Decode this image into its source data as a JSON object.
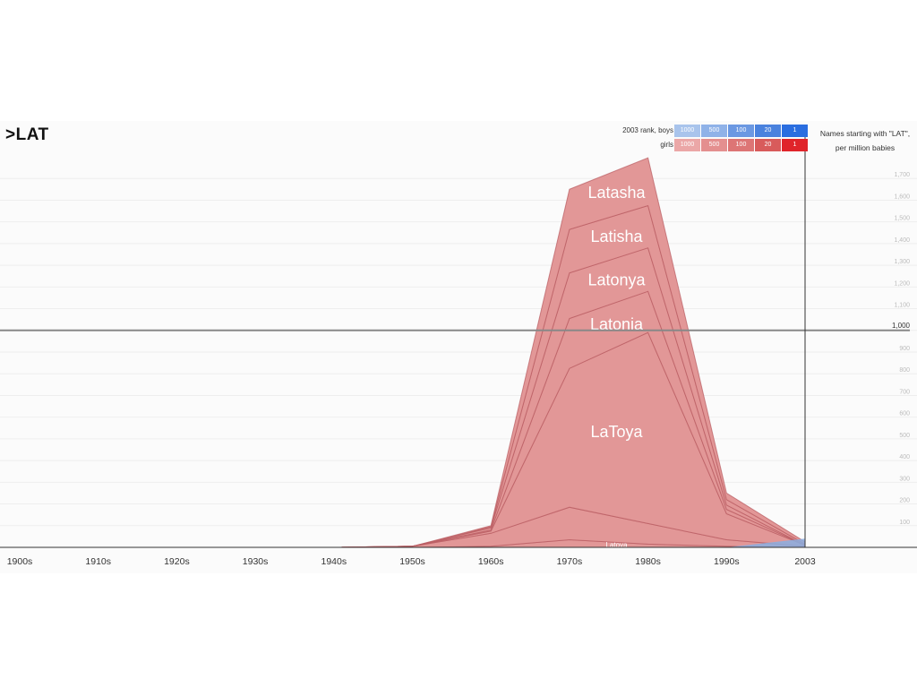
{
  "search_text": ">LAT",
  "legend": {
    "boys_label": "2003 rank, boys",
    "girls_label": "girls",
    "boys_cells": [
      "1000",
      "500",
      "100",
      "20",
      "1"
    ],
    "girls_cells": [
      "1000",
      "500",
      "100",
      "20",
      "1"
    ],
    "boys_colors": [
      "#a9c4ec",
      "#8fb2e8",
      "#6b98e2",
      "#4a82de",
      "#2a6ee0"
    ],
    "girls_colors": [
      "#eba7a7",
      "#e48f8f",
      "#dd7575",
      "#d85b5b",
      "#e0242a"
    ]
  },
  "note": "Names starting with \"LAT\", per million babies",
  "colors": {
    "girls_fill": "#e29797",
    "girls_edge": "#b85a5f",
    "boys_fill": "#8aaee0",
    "grid": "#eeeeee",
    "axis": "#333333"
  },
  "chart_data": {
    "type": "area",
    "stacked": true,
    "x": [
      "1900s",
      "1910s",
      "1920s",
      "1930s",
      "1940s",
      "1950s",
      "1960s",
      "1970s",
      "1980s",
      "1990s",
      "2003"
    ],
    "ylim": [
      0,
      1800
    ],
    "yticks": [
      "1,000"
    ],
    "series": [
      {
        "name": "Latoya",
        "values": [
          0,
          0,
          0,
          0,
          0,
          0,
          5,
          35,
          15,
          5,
          0
        ]
      },
      {
        "name": "",
        "values": [
          0,
          0,
          0,
          0,
          0,
          5,
          60,
          150,
          95,
          30,
          5
        ]
      },
      {
        "name": "LaToya",
        "values": [
          0,
          0,
          0,
          0,
          0,
          0,
          10,
          640,
          880,
          120,
          5
        ]
      },
      {
        "name": "Latonia",
        "values": [
          0,
          0,
          0,
          0,
          0,
          0,
          5,
          230,
          190,
          20,
          0
        ]
      },
      {
        "name": "Latonya",
        "values": [
          0,
          0,
          0,
          0,
          0,
          0,
          10,
          210,
          200,
          20,
          0
        ]
      },
      {
        "name": "Latisha",
        "values": [
          0,
          0,
          0,
          0,
          0,
          0,
          5,
          200,
          195,
          25,
          5
        ]
      },
      {
        "name": "Latasha",
        "values": [
          0,
          0,
          0,
          0,
          0,
          0,
          5,
          185,
          220,
          30,
          10
        ]
      }
    ],
    "boys_series": {
      "values": [
        0,
        0,
        0,
        0,
        0,
        0,
        0,
        0,
        0,
        0,
        40
      ]
    }
  }
}
